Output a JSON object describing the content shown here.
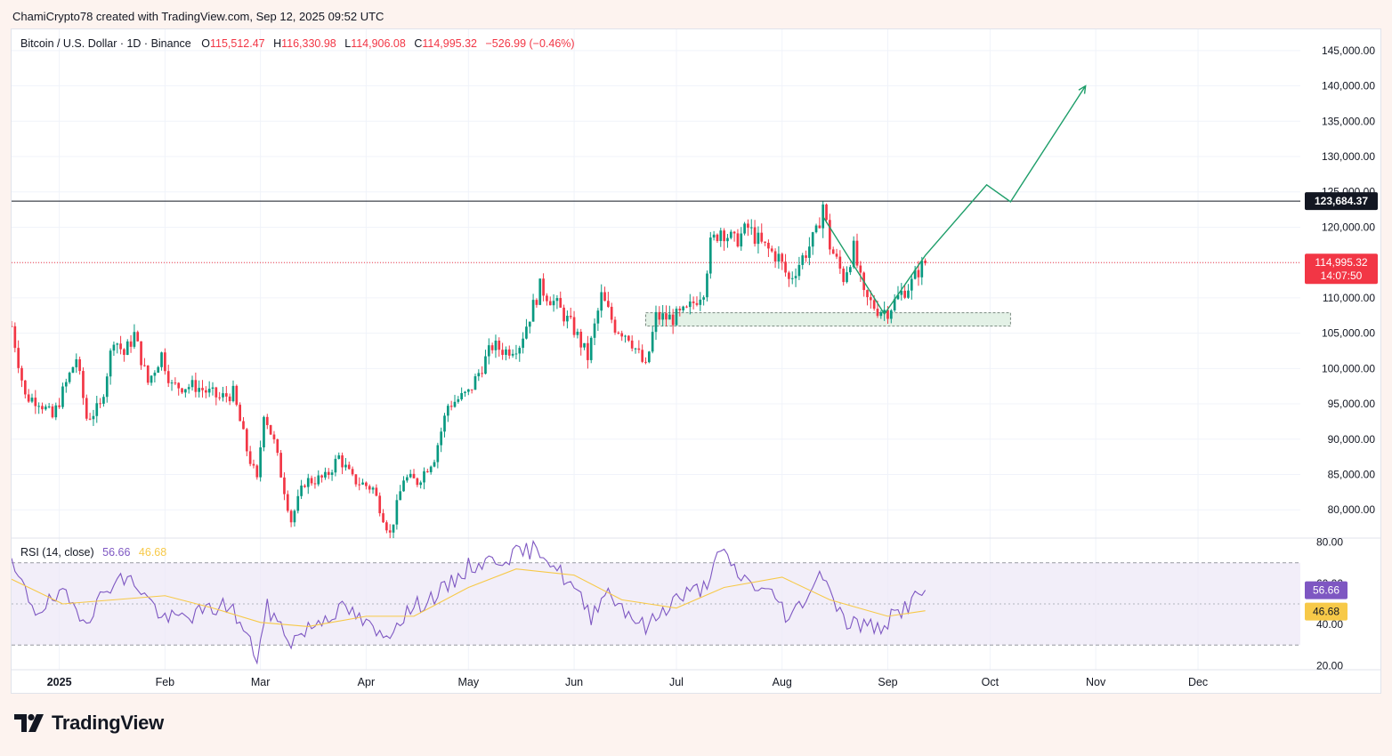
{
  "header": {
    "attribution": "ChamiCrypto78 created with TradingView.com, Sep 12, 2025 09:52 UTC"
  },
  "legend": {
    "symbol": "Bitcoin / U.S. Dollar · 1D · Binance",
    "open_label": "O",
    "open": "115,512.47",
    "high_label": "H",
    "high": "116,330.98",
    "low_label": "L",
    "low": "114,906.08",
    "close_label": "C",
    "close": "114,995.32",
    "change": "−526.99 (−0.46%)"
  },
  "rsi_legend": {
    "label": "RSI (14, close)",
    "value": "56.66",
    "ma_value": "46.68"
  },
  "colors": {
    "up": "#089981",
    "down": "#f23645",
    "rsi_line": "#7e57c2",
    "rsi_ma": "#f7c948",
    "rsi_band": "#ede7f6",
    "projection": "#1e9e6a",
    "zone_fill": "#e3f1e6",
    "resistance": "#131722"
  },
  "chart_data": [
    {
      "type": "candlestick",
      "title": "Bitcoin / U.S. Dollar · 1D · Binance",
      "x_range": [
        "2024-12-18",
        "2025-12-31"
      ],
      "ylim": [
        76000,
        148000
      ],
      "y_ticks": [
        "80,000.00",
        "85,000.00",
        "90,000.00",
        "95,000.00",
        "100,000.00",
        "105,000.00",
        "110,000.00",
        "115,000.00",
        "120,000.00",
        "125,000.00",
        "130,000.00",
        "135,000.00",
        "140,000.00",
        "145,000.00"
      ],
      "x_tick_labels": [
        "2025",
        "Feb",
        "Mar",
        "Apr",
        "May",
        "Jun",
        "Jul",
        "Aug",
        "Sep",
        "Oct",
        "Nov",
        "Dec"
      ],
      "close_path": [
        [
          "2024-12-18",
          106000
        ],
        [
          "2024-12-22",
          96000
        ],
        [
          "2024-12-26",
          95500
        ],
        [
          "2024-12-30",
          93000
        ],
        [
          "2025-01-06",
          101500
        ],
        [
          "2025-01-09",
          93000
        ],
        [
          "2025-01-13",
          94500
        ],
        [
          "2025-01-17",
          104500
        ],
        [
          "2025-01-20",
          102000
        ],
        [
          "2025-01-23",
          104800
        ],
        [
          "2025-01-27",
          98000
        ],
        [
          "2025-01-31",
          102000
        ],
        [
          "2025-02-03",
          97500
        ],
        [
          "2025-02-10",
          97500
        ],
        [
          "2025-02-17",
          95800
        ],
        [
          "2025-02-21",
          96500
        ],
        [
          "2025-02-25",
          88500
        ],
        [
          "2025-02-28",
          84000
        ],
        [
          "2025-03-02",
          94000
        ],
        [
          "2025-03-05",
          89500
        ],
        [
          "2025-03-10",
          78500
        ],
        [
          "2025-03-14",
          84000
        ],
        [
          "2025-03-20",
          84500
        ],
        [
          "2025-03-24",
          87500
        ],
        [
          "2025-03-28",
          84300
        ],
        [
          "2025-04-03",
          83000
        ],
        [
          "2025-04-08",
          76500
        ],
        [
          "2025-04-12",
          84500
        ],
        [
          "2025-04-16",
          84000
        ],
        [
          "2025-04-21",
          87500
        ],
        [
          "2025-04-25",
          94800
        ],
        [
          "2025-05-01",
          96500
        ],
        [
          "2025-05-08",
          103200
        ],
        [
          "2025-05-12",
          102500
        ],
        [
          "2025-05-16",
          103500
        ],
        [
          "2025-05-22",
          111500
        ],
        [
          "2025-05-27",
          108900
        ],
        [
          "2025-06-01",
          105500
        ],
        [
          "2025-06-05",
          101600
        ],
        [
          "2025-06-09",
          110200
        ],
        [
          "2025-06-13",
          105900
        ],
        [
          "2025-06-17",
          104700
        ],
        [
          "2025-06-22",
          100000
        ],
        [
          "2025-06-25",
          107300
        ],
        [
          "2025-06-30",
          107100
        ],
        [
          "2025-07-04",
          108000
        ],
        [
          "2025-07-09",
          111300
        ],
        [
          "2025-07-11",
          117500
        ],
        [
          "2025-07-14",
          119800
        ],
        [
          "2025-07-18",
          117900
        ],
        [
          "2025-07-22",
          119900
        ],
        [
          "2025-07-26",
          117500
        ],
        [
          "2025-07-31",
          115700
        ],
        [
          "2025-08-03",
          112500
        ],
        [
          "2025-08-06",
          114900
        ],
        [
          "2025-08-08",
          116500
        ],
        [
          "2025-08-11",
          119000
        ],
        [
          "2025-08-13",
          123300
        ],
        [
          "2025-08-15",
          117400
        ],
        [
          "2025-08-19",
          112900
        ],
        [
          "2025-08-22",
          116900
        ],
        [
          "2025-08-25",
          110100
        ],
        [
          "2025-08-29",
          108400
        ],
        [
          "2025-09-01",
          108200
        ],
        [
          "2025-09-05",
          110700
        ],
        [
          "2025-09-08",
          112100
        ],
        [
          "2025-09-10",
          113900
        ],
        [
          "2025-09-12",
          114995
        ]
      ],
      "resistance_level": 123684.37,
      "resistance_label": "123,684.37",
      "last_price_label": "114,995.32",
      "countdown_label": "14:07:50",
      "support_zone": {
        "from": "2025-06-22",
        "to": "2025-10-07",
        "low": 106000,
        "high": 107900
      },
      "projection_path": [
        [
          "2025-08-13",
          121500
        ],
        [
          "2025-08-31",
          107700
        ],
        [
          "2025-09-12",
          116000
        ],
        [
          "2025-09-30",
          126000
        ],
        [
          "2025-10-07",
          123600
        ],
        [
          "2025-10-29",
          140000
        ]
      ]
    },
    {
      "type": "line",
      "title": "RSI (14, close)",
      "ylim": [
        18,
        82
      ],
      "y_ticks": [
        "20.00",
        "40.00",
        "60.00",
        "80.00"
      ],
      "band": [
        30,
        70
      ],
      "midline": 50,
      "rsi_path": [
        [
          "2024-12-18",
          68
        ],
        [
          "2024-12-25",
          47
        ],
        [
          "2025-01-02",
          54
        ],
        [
          "2025-01-09",
          43
        ],
        [
          "2025-01-17",
          62
        ],
        [
          "2025-01-23",
          61
        ],
        [
          "2025-02-01",
          42
        ],
        [
          "2025-02-10",
          45
        ],
        [
          "2025-02-20",
          50
        ],
        [
          "2025-02-28",
          24
        ],
        [
          "2025-03-03",
          48
        ],
        [
          "2025-03-10",
          32
        ],
        [
          "2025-03-20",
          44
        ],
        [
          "2025-03-26",
          48
        ],
        [
          "2025-04-06",
          33
        ],
        [
          "2025-04-12",
          45
        ],
        [
          "2025-04-25",
          58
        ],
        [
          "2025-05-01",
          68
        ],
        [
          "2025-05-10",
          72
        ],
        [
          "2025-05-22",
          77
        ],
        [
          "2025-06-01",
          57
        ],
        [
          "2025-06-06",
          44
        ],
        [
          "2025-06-10",
          57
        ],
        [
          "2025-06-22",
          38
        ],
        [
          "2025-06-30",
          52
        ],
        [
          "2025-07-09",
          58
        ],
        [
          "2025-07-14",
          75
        ],
        [
          "2025-07-20",
          63
        ],
        [
          "2025-07-31",
          52
        ],
        [
          "2025-08-03",
          42
        ],
        [
          "2025-08-13",
          66
        ],
        [
          "2025-08-19",
          42
        ],
        [
          "2025-08-29",
          38
        ],
        [
          "2025-09-02",
          43
        ],
        [
          "2025-09-12",
          56.66
        ]
      ],
      "ma_path": [
        [
          "2024-12-18",
          62
        ],
        [
          "2025-01-02",
          50
        ],
        [
          "2025-01-17",
          52
        ],
        [
          "2025-02-01",
          54
        ],
        [
          "2025-02-15",
          48
        ],
        [
          "2025-03-01",
          41
        ],
        [
          "2025-03-15",
          39
        ],
        [
          "2025-04-01",
          44
        ],
        [
          "2025-04-15",
          44
        ],
        [
          "2025-05-01",
          58
        ],
        [
          "2025-05-15",
          67
        ],
        [
          "2025-06-01",
          64
        ],
        [
          "2025-06-15",
          52
        ],
        [
          "2025-07-01",
          48
        ],
        [
          "2025-07-15",
          58
        ],
        [
          "2025-08-01",
          63
        ],
        [
          "2025-08-15",
          52
        ],
        [
          "2025-09-01",
          44
        ],
        [
          "2025-09-12",
          46.68
        ]
      ],
      "current_value_label": "56.66",
      "current_ma_label": "46.68"
    }
  ],
  "footer": {
    "brand": "TradingView"
  }
}
